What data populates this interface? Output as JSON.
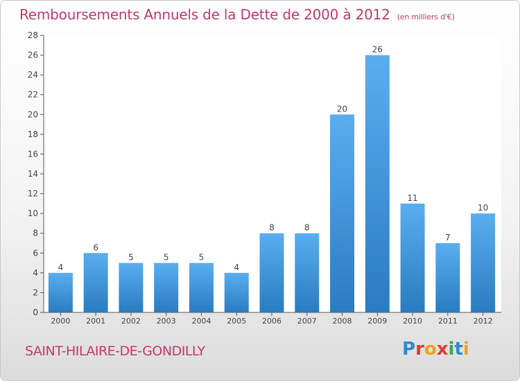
{
  "header": {
    "title": "Remboursements Annuels de la Dette de 2000 à 2012",
    "unit": "(en milliers d'€)"
  },
  "footer": {
    "commune": "SAINT-HILAIRE-DE-GONDILLY",
    "logo_letters": [
      "P",
      "r",
      "o",
      "x",
      "i",
      "t",
      "i"
    ]
  },
  "colors": {
    "accent": "#c3386b",
    "bar_top": "#5aaef0",
    "bar_bottom": "#2a7bbf"
  },
  "chart_data": {
    "type": "bar",
    "categories": [
      "2000",
      "2001",
      "2002",
      "2003",
      "2004",
      "2005",
      "2006",
      "2007",
      "2008",
      "2009",
      "2010",
      "2011",
      "2012"
    ],
    "values": [
      4,
      6,
      5,
      5,
      5,
      4,
      8,
      8,
      20,
      26,
      11,
      7,
      10
    ],
    "ylim": [
      0,
      28
    ],
    "yticks": [
      "0",
      "2",
      "4",
      "6",
      "8",
      "10",
      "12",
      "14",
      "16",
      "18",
      "20",
      "22",
      "24",
      "26",
      "28"
    ],
    "grid": false,
    "legend": "none"
  }
}
